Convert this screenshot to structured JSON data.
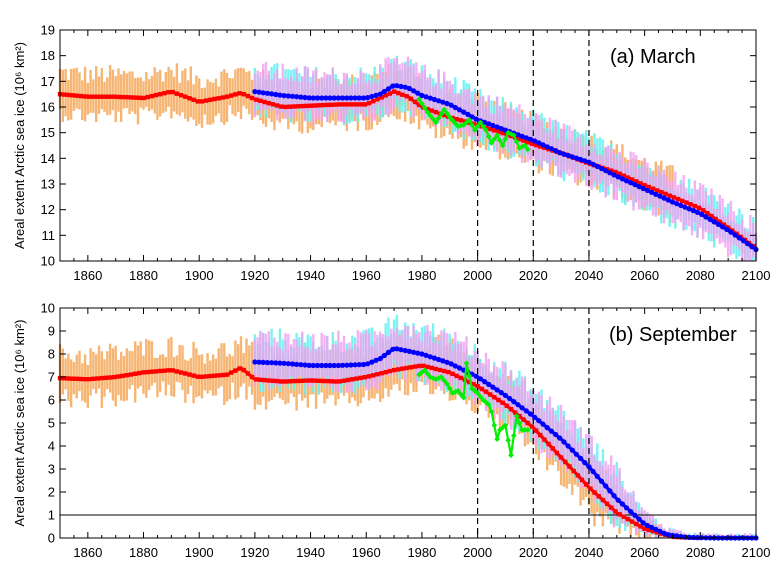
{
  "colors": {
    "background": "#ffffff",
    "axis": "#000000",
    "red_series": "#ff0000",
    "blue_series": "#0000ff",
    "green_series": "#00ee00",
    "orange_spread": "#f5a85a",
    "cyan_spread": "#66f0f0",
    "pink_spread": "#f0a0f0",
    "reference_line": "#000000"
  },
  "chart_data": [
    {
      "type": "line",
      "panel": "(a) March",
      "title": "(a) March",
      "ylabel": "Areal extent Arctic sea ice (10⁶ km²)",
      "xlim": [
        1850,
        2100
      ],
      "ylim": [
        10,
        19
      ],
      "xticks": [
        "1860",
        "1880",
        "1900",
        "1920",
        "1940",
        "1960",
        "1980",
        "2000",
        "2020",
        "2040",
        "2060",
        "2080",
        "2100"
      ],
      "yticks": [
        "10",
        "11",
        "12",
        "13",
        "14",
        "15",
        "16",
        "17",
        "18",
        "19"
      ],
      "vertical_dashed_lines_x": [
        2000,
        2020,
        2040
      ],
      "grid": false,
      "series": [
        {
          "color": "red",
          "points": [
            [
              1850,
              16.5
            ],
            [
              1860,
              16.4
            ],
            [
              1870,
              16.4
            ],
            [
              1880,
              16.35
            ],
            [
              1890,
              16.6
            ],
            [
              1900,
              16.2
            ],
            [
              1910,
              16.4
            ],
            [
              1915,
              16.55
            ],
            [
              1920,
              16.3
            ],
            [
              1930,
              16.0
            ],
            [
              1940,
              16.05
            ],
            [
              1950,
              16.1
            ],
            [
              1960,
              16.1
            ],
            [
              1970,
              16.6
            ],
            [
              1975,
              16.4
            ],
            [
              1980,
              16.0
            ],
            [
              1990,
              15.6
            ],
            [
              2000,
              15.3
            ],
            [
              2010,
              14.95
            ],
            [
              2020,
              14.55
            ],
            [
              2030,
              14.2
            ],
            [
              2040,
              13.8
            ],
            [
              2050,
              13.45
            ],
            [
              2060,
              12.95
            ],
            [
              2070,
              12.5
            ],
            [
              2080,
              12.05
            ],
            [
              2090,
              11.3
            ],
            [
              2100,
              10.5
            ]
          ]
        },
        {
          "color": "blue",
          "points": [
            [
              1920,
              16.6
            ],
            [
              1930,
              16.45
            ],
            [
              1940,
              16.35
            ],
            [
              1950,
              16.35
            ],
            [
              1960,
              16.35
            ],
            [
              1965,
              16.5
            ],
            [
              1970,
              16.85
            ],
            [
              1975,
              16.75
            ],
            [
              1980,
              16.45
            ],
            [
              1990,
              16.1
            ],
            [
              2000,
              15.5
            ],
            [
              2010,
              15.1
            ],
            [
              2020,
              14.7
            ],
            [
              2030,
              14.2
            ],
            [
              2040,
              13.85
            ],
            [
              2050,
              13.3
            ],
            [
              2060,
              12.8
            ],
            [
              2070,
              12.3
            ],
            [
              2080,
              11.85
            ],
            [
              2090,
              11.2
            ],
            [
              2100,
              10.45
            ]
          ]
        },
        {
          "color": "green",
          "points": [
            [
              1979,
              16.3
            ],
            [
              1982,
              15.8
            ],
            [
              1985,
              15.4
            ],
            [
              1988,
              15.9
            ],
            [
              1990,
              15.6
            ],
            [
              1993,
              15.25
            ],
            [
              1995,
              15.3
            ],
            [
              1997,
              15.5
            ],
            [
              1999,
              15.1
            ],
            [
              2001,
              15.4
            ],
            [
              2003,
              15.1
            ],
            [
              2005,
              14.6
            ],
            [
              2007,
              14.9
            ],
            [
              2009,
              14.5
            ],
            [
              2011,
              15.0
            ],
            [
              2013,
              14.9
            ],
            [
              2015,
              14.4
            ],
            [
              2017,
              14.5
            ],
            [
              2018,
              14.35
            ]
          ]
        }
      ],
      "spreads": [
        {
          "color": "orange",
          "x": [
            1850,
            2070
          ]
        },
        {
          "color": "cyan",
          "x": [
            1920,
            2100
          ]
        },
        {
          "color": "pink",
          "x": [
            1920,
            2100
          ]
        }
      ]
    },
    {
      "type": "line",
      "panel": "(b) September",
      "title": "(b) September",
      "ylabel": "Areal extent Arctic sea ice (10⁶ km²)",
      "xlim": [
        1850,
        2100
      ],
      "ylim": [
        0,
        10
      ],
      "xticks": [
        "1860",
        "1880",
        "1900",
        "1920",
        "1940",
        "1960",
        "1980",
        "2000",
        "2020",
        "2040",
        "2060",
        "2080",
        "2100"
      ],
      "yticks": [
        "0",
        "1",
        "2",
        "3",
        "4",
        "5",
        "6",
        "7",
        "8",
        "9",
        "10"
      ],
      "vertical_dashed_lines_x": [
        2000,
        2020,
        2040
      ],
      "horizontal_reference_y": 1,
      "grid": false,
      "series": [
        {
          "color": "red",
          "points": [
            [
              1850,
              6.95
            ],
            [
              1860,
              6.9
            ],
            [
              1870,
              7.0
            ],
            [
              1880,
              7.2
            ],
            [
              1890,
              7.3
            ],
            [
              1900,
              7.0
            ],
            [
              1910,
              7.1
            ],
            [
              1915,
              7.4
            ],
            [
              1920,
              6.9
            ],
            [
              1930,
              6.8
            ],
            [
              1940,
              6.85
            ],
            [
              1950,
              6.8
            ],
            [
              1960,
              7.0
            ],
            [
              1970,
              7.3
            ],
            [
              1980,
              7.5
            ],
            [
              1990,
              7.2
            ],
            [
              2000,
              6.6
            ],
            [
              2010,
              5.8
            ],
            [
              2020,
              4.8
            ],
            [
              2030,
              3.5
            ],
            [
              2040,
              2.2
            ],
            [
              2050,
              1.1
            ],
            [
              2060,
              0.4
            ],
            [
              2070,
              0.05
            ],
            [
              2080,
              0.0
            ]
          ]
        },
        {
          "color": "blue",
          "points": [
            [
              1920,
              7.65
            ],
            [
              1930,
              7.6
            ],
            [
              1940,
              7.5
            ],
            [
              1950,
              7.5
            ],
            [
              1960,
              7.55
            ],
            [
              1965,
              7.8
            ],
            [
              1970,
              8.25
            ],
            [
              1980,
              8.0
            ],
            [
              1990,
              7.6
            ],
            [
              2000,
              7.0
            ],
            [
              2010,
              6.2
            ],
            [
              2020,
              5.3
            ],
            [
              2030,
              4.3
            ],
            [
              2040,
              3.1
            ],
            [
              2050,
              1.7
            ],
            [
              2060,
              0.6
            ],
            [
              2068,
              0.15
            ],
            [
              2075,
              0.03
            ],
            [
              2085,
              0.0
            ],
            [
              2100,
              0.0
            ]
          ]
        },
        {
          "color": "green",
          "points": [
            [
              1979,
              7.1
            ],
            [
              1981,
              7.3
            ],
            [
              1983,
              7.0
            ],
            [
              1985,
              6.9
            ],
            [
              1987,
              7.0
            ],
            [
              1989,
              6.7
            ],
            [
              1991,
              6.3
            ],
            [
              1993,
              6.4
            ],
            [
              1995,
              6.1
            ],
            [
              1996,
              7.6
            ],
            [
              1998,
              6.5
            ],
            [
              2000,
              6.3
            ],
            [
              2002,
              6.0
            ],
            [
              2004,
              5.8
            ],
            [
              2005,
              5.5
            ],
            [
              2007,
              4.3
            ],
            [
              2008,
              4.7
            ],
            [
              2010,
              4.9
            ],
            [
              2012,
              3.6
            ],
            [
              2014,
              5.3
            ],
            [
              2016,
              4.7
            ],
            [
              2018,
              4.7
            ]
          ]
        }
      ],
      "spreads": [
        {
          "color": "orange",
          "x": [
            1850,
            2070
          ]
        },
        {
          "color": "cyan",
          "x": [
            1920,
            2100
          ]
        },
        {
          "color": "pink",
          "x": [
            1920,
            2100
          ]
        }
      ]
    }
  ]
}
